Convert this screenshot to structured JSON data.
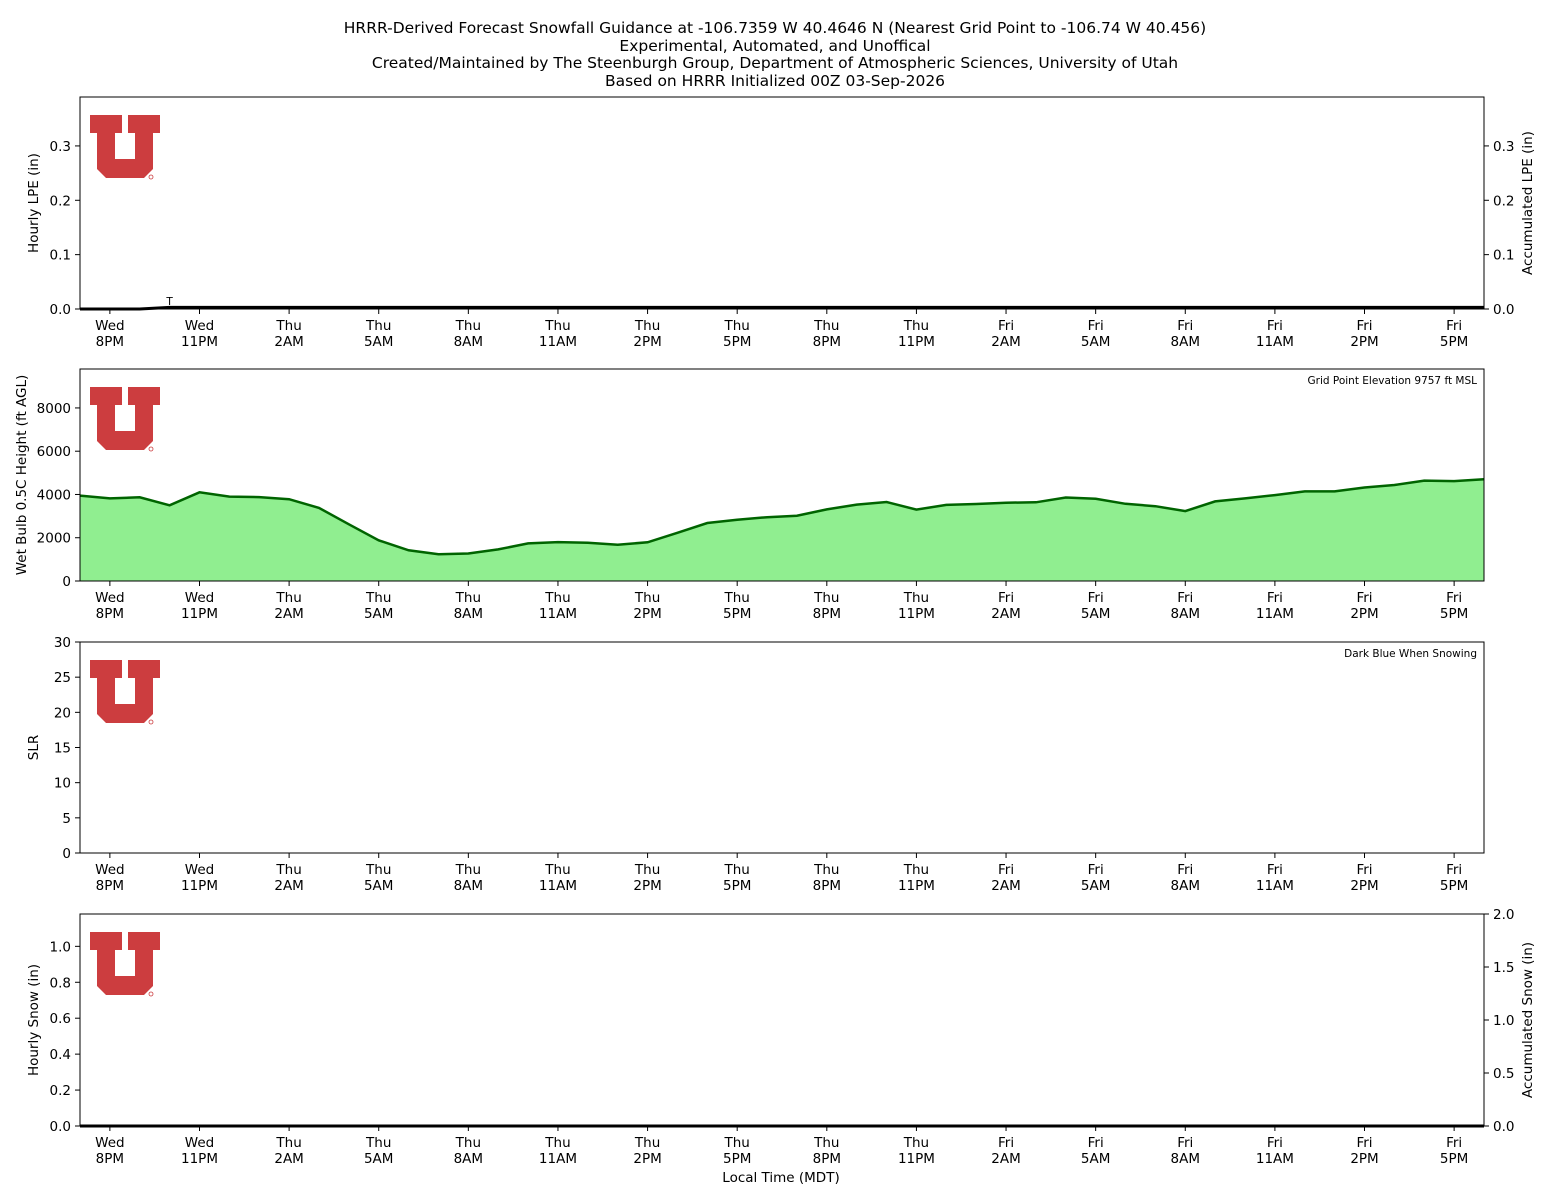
{
  "title": {
    "line1": "HRRR-Derived Forecast Snowfall Guidance at -106.7359 W 40.4646 N (Nearest Grid Point to -106.74 W 40.456)",
    "line2": "Experimental, Automated, and Unoffical",
    "line3": "Created/Maintained by The Steenburgh Group, Department of Atmospheric Sciences, University of Utah",
    "line4": "Based on HRRR Initialized 00Z 03-Sep-2026"
  },
  "xlabel": "Local Time (MDT)",
  "colors": {
    "logo": "#cc3d3f",
    "wetbulb_fill": "#90ee90",
    "wetbulb_line": "#006400",
    "accum_line": "#000000"
  },
  "chart_data": [
    {
      "type": "bar",
      "ylabel": "Hourly LPE (in)",
      "y2label": "Accumulated LPE (in)",
      "ylim": [
        0,
        0.39
      ],
      "yticks": [
        0.0,
        0.1,
        0.2,
        0.3
      ],
      "y2ticks": [
        0.0,
        0.1,
        0.2,
        0.3
      ],
      "xlim": [
        -1,
        46
      ],
      "x_ticks": [
        {
          "x": 0,
          "day": "Wed",
          "time": "8PM"
        },
        {
          "x": 3,
          "day": "Wed",
          "time": "11PM"
        },
        {
          "x": 6,
          "day": "Thu",
          "time": "2AM"
        },
        {
          "x": 9,
          "day": "Thu",
          "time": "5AM"
        },
        {
          "x": 12,
          "day": "Thu",
          "time": "8AM"
        },
        {
          "x": 15,
          "day": "Thu",
          "time": "11AM"
        },
        {
          "x": 18,
          "day": "Thu",
          "time": "2PM"
        },
        {
          "x": 21,
          "day": "Thu",
          "time": "5PM"
        },
        {
          "x": 24,
          "day": "Thu",
          "time": "8PM"
        },
        {
          "x": 27,
          "day": "Thu",
          "time": "11PM"
        },
        {
          "x": 30,
          "day": "Fri",
          "time": "2AM"
        },
        {
          "x": 33,
          "day": "Fri",
          "time": "5AM"
        },
        {
          "x": 36,
          "day": "Fri",
          "time": "8AM"
        },
        {
          "x": 39,
          "day": "Fri",
          "time": "11AM"
        },
        {
          "x": 42,
          "day": "Fri",
          "time": "2PM"
        },
        {
          "x": 45,
          "day": "Fri",
          "time": "5PM"
        }
      ],
      "trace_label": {
        "x": 2,
        "text": "T"
      },
      "accumulated": {
        "x": [
          -1,
          1,
          2,
          46
        ],
        "y": [
          0.0,
          0.0,
          0.003,
          0.003
        ]
      }
    },
    {
      "type": "area",
      "ylabel": "Wet Bulb 0.5C Height (ft AGL)",
      "ylim": [
        0,
        9800
      ],
      "yticks": [
        0,
        2000,
        4000,
        6000,
        8000
      ],
      "xlim": [
        -1,
        46
      ],
      "annotation": "Grid Point Elevation 9757 ft MSL",
      "x": [
        -1,
        0,
        1,
        2,
        3,
        4,
        5,
        6,
        7,
        8,
        9,
        10,
        11,
        12,
        13,
        14,
        15,
        16,
        17,
        18,
        19,
        20,
        21,
        22,
        23,
        24,
        25,
        26,
        27,
        28,
        29,
        30,
        31,
        32,
        33,
        34,
        35,
        36,
        37,
        38,
        39,
        40,
        41,
        42,
        43,
        44,
        45,
        46
      ],
      "y": [
        3950,
        3820,
        3870,
        3500,
        4100,
        3900,
        3880,
        3780,
        3380,
        2620,
        1880,
        1420,
        1240,
        1270,
        1460,
        1740,
        1800,
        1770,
        1680,
        1790,
        2230,
        2680,
        2830,
        2950,
        3020,
        3310,
        3530,
        3650,
        3300,
        3520,
        3560,
        3620,
        3640,
        3860,
        3800,
        3570,
        3460,
        3230,
        3680,
        3820,
        3970,
        4140,
        4140,
        4320,
        4440,
        4640,
        4620,
        4700
      ]
    },
    {
      "type": "line",
      "ylabel": "SLR",
      "ylim": [
        0,
        30
      ],
      "yticks": [
        0,
        5,
        10,
        15,
        20,
        25,
        30
      ],
      "xlim": [
        -1,
        46
      ],
      "annotation": "Dark Blue When Snowing",
      "x": [],
      "y": []
    },
    {
      "type": "bar",
      "ylabel": "Hourly Snow (in)",
      "y2label": "Accumulated Snow (in)",
      "ylim": [
        0,
        1.18
      ],
      "yticks": [
        0.0,
        0.2,
        0.4,
        0.6,
        0.8,
        1.0
      ],
      "y2lim": [
        0,
        2.0
      ],
      "y2ticks": [
        0.0,
        0.5,
        1.0,
        1.5,
        2.0
      ],
      "xlim": [
        -1,
        46
      ],
      "accumulated": {
        "x": [
          -1,
          46
        ],
        "y": [
          0.0,
          0.0
        ]
      }
    }
  ]
}
